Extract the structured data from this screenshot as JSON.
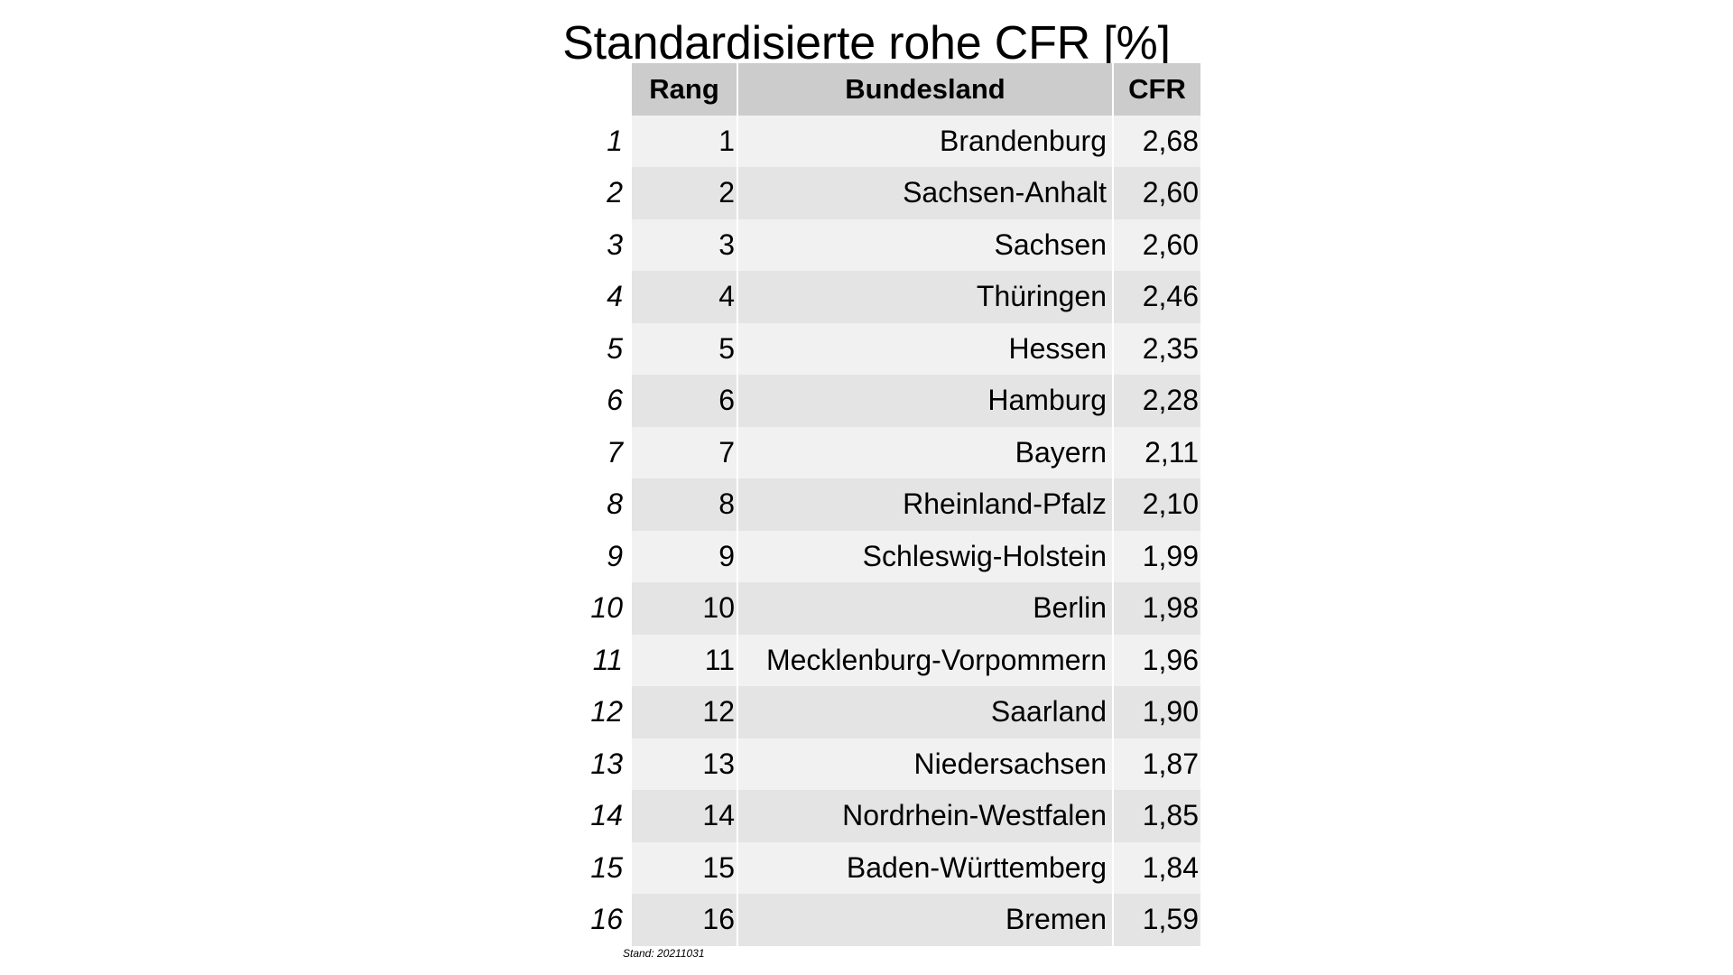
{
  "chart_data": {
    "type": "table",
    "title": "Standardisierte rohe CFR [%]",
    "columns": [
      "Rang",
      "Bundesland",
      "CFR"
    ],
    "rows": [
      {
        "index": "1",
        "rank": "1",
        "state": "Brandenburg",
        "cfr": "2,68"
      },
      {
        "index": "2",
        "rank": "2",
        "state": "Sachsen-Anhalt",
        "cfr": "2,60"
      },
      {
        "index": "3",
        "rank": "3",
        "state": "Sachsen",
        "cfr": "2,60"
      },
      {
        "index": "4",
        "rank": "4",
        "state": "Thüringen",
        "cfr": "2,46"
      },
      {
        "index": "5",
        "rank": "5",
        "state": "Hessen",
        "cfr": "2,35"
      },
      {
        "index": "6",
        "rank": "6",
        "state": "Hamburg",
        "cfr": "2,28"
      },
      {
        "index": "7",
        "rank": "7",
        "state": "Bayern",
        "cfr": "2,11"
      },
      {
        "index": "8",
        "rank": "8",
        "state": "Rheinland-Pfalz",
        "cfr": "2,10"
      },
      {
        "index": "9",
        "rank": "9",
        "state": "Schleswig-Holstein",
        "cfr": "1,99"
      },
      {
        "index": "10",
        "rank": "10",
        "state": "Berlin",
        "cfr": "1,98"
      },
      {
        "index": "11",
        "rank": "11",
        "state": "Mecklenburg-Vorpommern",
        "cfr": "1,96"
      },
      {
        "index": "12",
        "rank": "12",
        "state": "Saarland",
        "cfr": "1,90"
      },
      {
        "index": "13",
        "rank": "13",
        "state": "Niedersachsen",
        "cfr": "1,87"
      },
      {
        "index": "14",
        "rank": "14",
        "state": "Nordrhein-Westfalen",
        "cfr": "1,85"
      },
      {
        "index": "15",
        "rank": "15",
        "state": "Baden-Württemberg",
        "cfr": "1,84"
      },
      {
        "index": "16",
        "rank": "16",
        "state": "Bremen",
        "cfr": "1,59"
      }
    ],
    "footnote": "Stand: 20211031",
    "colors": {
      "header_bg": "#cccccc",
      "row_light": "#f1f1f1",
      "row_dark": "#e4e4e4"
    }
  }
}
